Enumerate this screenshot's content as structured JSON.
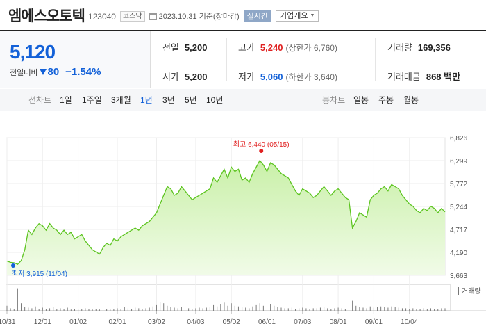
{
  "header": {
    "name": "엠에스오토텍",
    "code": "123040",
    "market_badge": "코스닥",
    "date": "2023.10.31  기준(장마감)",
    "realtime_button": "실시간",
    "corp_dropdown": "기업개요"
  },
  "price": {
    "current": "5,120",
    "change_label": "전일대비",
    "change_value": "80",
    "change_pct": "−1.54%"
  },
  "info": {
    "prev_close_label": "전일",
    "prev_close": "5,200",
    "high_label": "고가",
    "high": "5,240",
    "upper_limit": "(상한가 6,760)",
    "volume_label": "거래량",
    "volume": "169,356",
    "open_label": "시가",
    "open": "5,200",
    "low_label": "저가",
    "low": "5,060",
    "lower_limit": "(하한가 3,640)",
    "amount_label": "거래대금",
    "amount": "868 백만"
  },
  "line_tabs": {
    "label": "선차트",
    "items": [
      "1일",
      "1주일",
      "3개월",
      "1년",
      "3년",
      "5년",
      "10년"
    ],
    "active": "1년"
  },
  "candle_tabs": {
    "label": "봉차트",
    "items": [
      "일봉",
      "주봉",
      "월봉"
    ]
  },
  "colors": {
    "accent": "#1361d8",
    "up": "#e02020",
    "line": "#5cc41f",
    "fill_top": "#c9f0a8",
    "fill_bottom": "#f1fbe8"
  },
  "chart_data": {
    "type": "area",
    "y_ticks": [
      "6,826",
      "6,299",
      "5,772",
      "5,244",
      "4,717",
      "4,190",
      "3,663"
    ],
    "ylim": [
      3663,
      6826
    ],
    "x_ticks": [
      "10/31",
      "12/01",
      "01/02",
      "02/01",
      "03/02",
      "04/03",
      "05/02",
      "06/01",
      "07/03",
      "08/01",
      "09/01",
      "10/04"
    ],
    "high_annotation": "최고 6,440 (05/15)",
    "low_annotation": "최저 3,915 (11/04)",
    "volume_label": "거래량",
    "series": [
      {
        "values": [
          3990,
          3960,
          3950,
          3915,
          4000,
          4250,
          4700,
          4600,
          4750,
          4850,
          4800,
          4700,
          4850,
          4750,
          4700,
          4600,
          4700,
          4600,
          4650,
          4500,
          4550,
          4600,
          4450,
          4350,
          4250,
          4200,
          4150,
          4300,
          4400,
          4350,
          4500,
          4450,
          4550,
          4600,
          4650,
          4700,
          4750,
          4700,
          4800,
          4850,
          4900,
          5000,
          5100,
          5300,
          5500,
          5700,
          5650,
          5500,
          5550,
          5700,
          5600,
          5500,
          5400,
          5450,
          5500,
          5550,
          5600,
          5650,
          5900,
          5800,
          5950,
          6100,
          5900,
          6150,
          6050,
          6100,
          5850,
          5900,
          5800,
          6000,
          6150,
          6300,
          6200,
          6050,
          6250,
          6200,
          6100,
          6000,
          5950,
          5900,
          5750,
          5600,
          5500,
          5650,
          5600,
          5550,
          5450,
          5500,
          5600,
          5700,
          5600,
          5500,
          5600,
          5650,
          5550,
          5450,
          5400,
          4750,
          4900,
          5100,
          5050,
          5000,
          5400,
          5500,
          5550,
          5650,
          5700,
          5600,
          5750,
          5700,
          5650,
          5500,
          5400,
          5300,
          5250,
          5150,
          5100,
          5200,
          5150,
          5250,
          5200,
          5100,
          5200,
          5120
        ]
      },
      {
        "name": "거래량",
        "values": [
          8,
          4,
          3,
          36,
          12,
          6,
          5,
          4,
          7,
          3,
          5,
          3,
          4,
          6,
          3,
          4,
          3,
          5,
          2,
          3,
          2,
          3,
          4,
          3,
          2,
          3,
          2,
          5,
          3,
          2,
          3,
          4,
          3,
          6,
          4,
          3,
          5,
          4,
          3,
          4,
          5,
          7,
          9,
          14,
          12,
          8,
          6,
          5,
          4,
          6,
          5,
          4,
          3,
          4,
          5,
          4,
          5,
          6,
          9,
          7,
          11,
          13,
          8,
          12,
          8,
          7,
          6,
          5,
          4,
          7,
          9,
          12,
          8,
          6,
          10,
          8,
          6,
          5,
          4,
          4,
          5,
          3,
          4,
          5,
          4,
          3,
          4,
          4,
          5,
          6,
          4,
          3,
          4,
          5,
          4,
          3,
          4,
          16,
          8,
          6,
          5,
          4,
          7,
          5,
          6,
          7,
          6,
          5,
          7,
          6,
          5,
          4,
          4,
          3,
          4,
          3,
          3,
          4,
          3,
          4,
          3,
          3,
          4,
          4
        ]
      }
    ]
  }
}
